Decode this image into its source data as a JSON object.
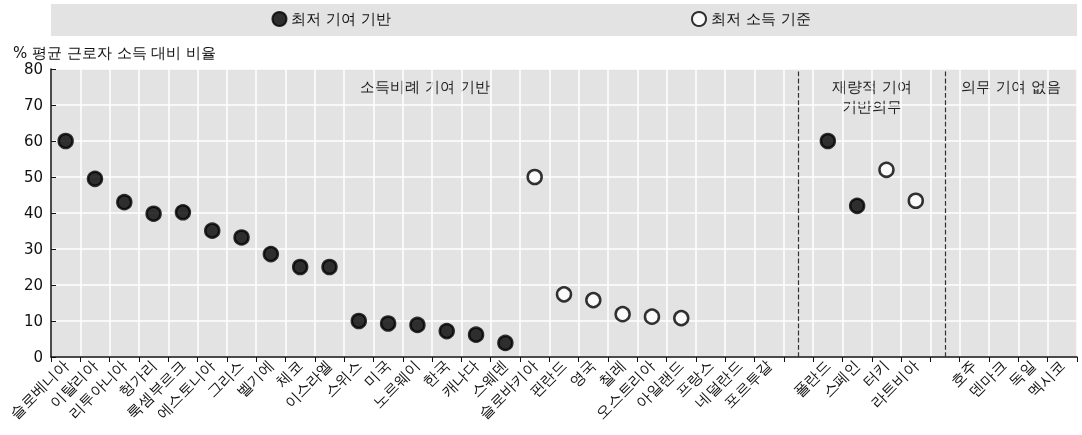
{
  "chart_data": {
    "type": "scatter",
    "ylabel": "% 평균 근로자 소득 대비 비율",
    "categories": [
      "슬로베니아",
      "이탈리아",
      "리투아니아",
      "헝가리",
      "룩셈부르크",
      "에스토니아",
      "그리스",
      "벨기에",
      "체코",
      "이스라엘",
      "스위스",
      "미국",
      "노르웨이",
      "한국",
      "캐나다",
      "스웨덴",
      "슬로바키아",
      "핀란드",
      "영국",
      "칠레",
      "오스트리아",
      "아일랜드",
      "프랑스",
      "네덜란드",
      "포르투갈",
      null,
      "폴란드",
      "스페인",
      "터키",
      "라트비아",
      null,
      "호주",
      "덴마크",
      "독일",
      "멕시코"
    ],
    "series": [
      {
        "name": "최저 기여 기반",
        "color": "#000000",
        "values": [
          60,
          49.5,
          43,
          39.8,
          40.2,
          35.1,
          33.2,
          28.6,
          25,
          25,
          10,
          9.3,
          8.9,
          7.2,
          6.2,
          3.9,
          null,
          null,
          null,
          null,
          null,
          null,
          null,
          null,
          null,
          null,
          60,
          42,
          null,
          null,
          null,
          null,
          null,
          null,
          null
        ]
      },
      {
        "name": "최저 소득 기준",
        "color": "#ffffff",
        "values": [
          null,
          null,
          null,
          null,
          null,
          null,
          null,
          null,
          null,
          null,
          null,
          null,
          null,
          null,
          null,
          null,
          50,
          17.4,
          15.8,
          11.9,
          11.2,
          10.8,
          null,
          null,
          null,
          null,
          null,
          null,
          52,
          43.4,
          null,
          null,
          null,
          null,
          null
        ]
      }
    ],
    "ylim": [
      0,
      80
    ],
    "yticks": [
      0,
      10,
      20,
      30,
      40,
      50,
      60,
      70,
      80
    ],
    "ref_lines": [
      {
        "axis": "x",
        "value": null,
        "line_style": "dashed",
        "color": "#333333"
      },
      {
        "axis": "x",
        "value": null,
        "line_style": "dashed",
        "color": "#333333"
      }
    ],
    "annotations": [
      "소득비례 기여 기반",
      "재량적 기여\n기반의무",
      "의무 기여 없음"
    ],
    "grid": true,
    "legend": "top",
    "marker": "circle"
  }
}
